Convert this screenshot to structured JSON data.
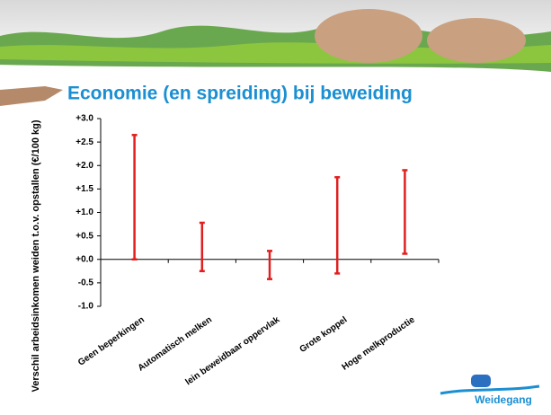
{
  "chart_data": {
    "type": "range",
    "title": "Economie (en spreiding) bij beweiding",
    "y_label": "Verschil arbeidsinkomen weiden t.o.v. opstallen (€/100 kg)",
    "categories": [
      "Geen beperkingen",
      "Automatisch melken",
      "lein beweidbaar oppervlak",
      "Grote koppel",
      "Hoge melkproductie"
    ],
    "lows": [
      0.0,
      -0.25,
      -0.42,
      -0.3,
      0.12
    ],
    "highs": [
      2.65,
      0.78,
      0.18,
      1.75,
      1.9
    ],
    "color": "#e02020",
    "ylim": [
      -1,
      3
    ],
    "yticks": [
      {
        "value": -1,
        "label": "-1.0"
      },
      -0.5,
      {
        "value": 0,
        "label": "+0.0"
      },
      {
        "value": 0.5,
        "label": "+0.5"
      },
      {
        "value": 1,
        "label": "+1.0"
      },
      {
        "value": 1.5,
        "label": "+1.5"
      },
      {
        "value": 2,
        "label": "+2.0"
      },
      {
        "value": 2.5,
        "label": "+2.5"
      },
      {
        "value": 3,
        "label": "+3.0"
      }
    ],
    "logo": "Weidegang"
  }
}
